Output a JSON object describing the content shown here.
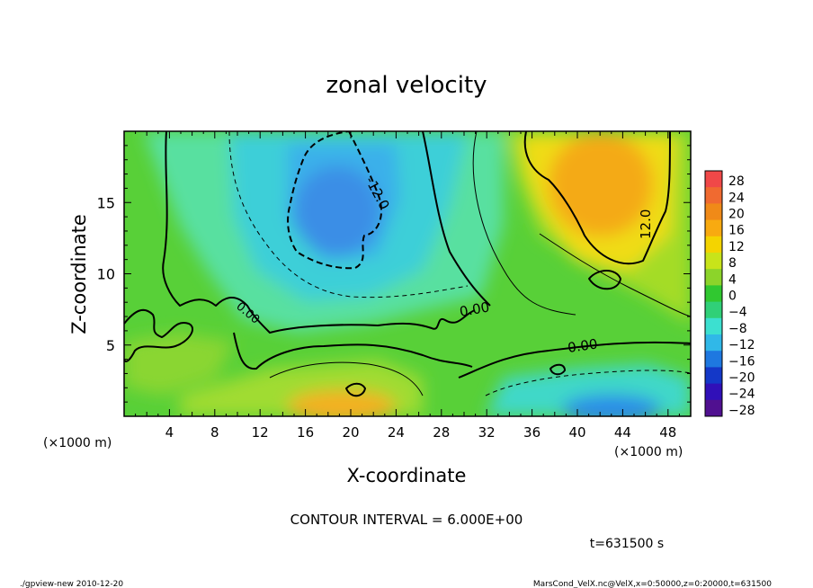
{
  "chart_data": {
    "type": "heatmap",
    "title": "zonal velocity",
    "xlabel": "X-coordinate",
    "ylabel": "Z-coordinate",
    "x_unit_left": "(×1000 m)",
    "x_unit_right": "(×1000 m)",
    "x_ticks": [
      "4",
      "8",
      "12",
      "16",
      "20",
      "24",
      "28",
      "32",
      "36",
      "40",
      "44",
      "48"
    ],
    "y_ticks": [
      "5",
      "10",
      "15"
    ],
    "xlim": [
      0,
      50
    ],
    "ylim": [
      0,
      20
    ],
    "colorbar_ticks": [
      "28",
      "24",
      "20",
      "16",
      "12",
      "8",
      "4",
      "0",
      "−4",
      "−8",
      "−12",
      "−16",
      "−20",
      "−24",
      "−28"
    ],
    "colorbar_colors": [
      "#f04848",
      "#f06a30",
      "#f08a18",
      "#f8aa10",
      "#f4d400",
      "#c8e41a",
      "#8cd42a",
      "#30c830",
      "#30d078",
      "#3ce0d0",
      "#30b8e8",
      "#1e78e0",
      "#1438c8",
      "#3010b8",
      "#501090"
    ],
    "contour_labels": [
      "-12.0",
      "12.0",
      "0.00",
      "0.00",
      "0.00"
    ],
    "contour_interval": "CONTOUR INTERVAL = 6.000E+00",
    "time": "t=631500 s",
    "footer_left": "./gpview-new   2010-12-20",
    "footer_right": "MarsCond_VelX.nc@VelX,x=0:50000,z=0:20000,t=631500"
  }
}
